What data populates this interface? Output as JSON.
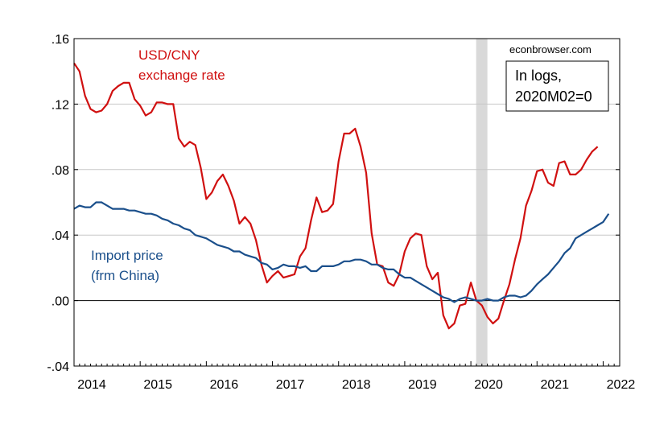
{
  "chart_data": {
    "type": "line",
    "title": "",
    "xlabel": "",
    "ylabel": "",
    "xlim": [
      2014.0,
      2022.25
    ],
    "ylim": [
      -0.04,
      0.16
    ],
    "x_ticks": [
      2014,
      2015,
      2016,
      2017,
      2018,
      2019,
      2020,
      2021,
      2022
    ],
    "x_tick_labels": [
      "2014",
      "2015",
      "2016",
      "2017",
      "2018",
      "2019",
      "2020",
      "2021",
      "2022"
    ],
    "y_ticks": [
      -0.04,
      0.0,
      0.04,
      0.08,
      0.12,
      0.16
    ],
    "y_tick_labels": [
      "-.04",
      ".00",
      ".04",
      ".08",
      ".12",
      ".16"
    ],
    "grid": true,
    "zero_line": true,
    "recession_shading": {
      "start": "2020M02",
      "end": "2020M04",
      "x": [
        2020.08,
        2020.25
      ],
      "color": "#d9d9d9"
    },
    "annotations": {
      "credit": "econbrowser.com",
      "note_line1": "In logs,",
      "note_line2": "2020M02=0"
    },
    "series": [
      {
        "name": "USD/CNY exchange rate",
        "label_line1": "USD/CNY",
        "label_line2": "exchange rate",
        "color": "#d01010",
        "start": "2014M01",
        "values": [
          0.145,
          0.14,
          0.125,
          0.117,
          0.115,
          0.116,
          0.12,
          0.128,
          0.131,
          0.133,
          0.133,
          0.123,
          0.119,
          0.113,
          0.115,
          0.121,
          0.121,
          0.12,
          0.12,
          0.099,
          0.094,
          0.097,
          0.095,
          0.081,
          0.062,
          0.066,
          0.073,
          0.077,
          0.07,
          0.061,
          0.047,
          0.051,
          0.047,
          0.037,
          0.022,
          0.011,
          0.015,
          0.018,
          0.014,
          0.015,
          0.016,
          0.027,
          0.032,
          0.049,
          0.063,
          0.054,
          0.055,
          0.059,
          0.085,
          0.102,
          0.102,
          0.105,
          0.094,
          0.078,
          0.041,
          0.022,
          0.021,
          0.011,
          0.009,
          0.016,
          0.03,
          0.038,
          0.041,
          0.04,
          0.021,
          0.013,
          0.017,
          -0.009,
          -0.017,
          -0.014,
          -0.003,
          -0.002,
          0.011,
          0.0,
          -0.003,
          -0.01,
          -0.014,
          -0.011,
          0.0,
          0.01,
          0.025,
          0.038,
          0.058,
          0.067,
          0.079,
          0.08,
          0.072,
          0.07,
          0.084,
          0.085,
          0.077,
          0.077,
          0.08,
          0.086,
          0.091,
          0.094
        ]
      },
      {
        "name": "Import price (frm China)",
        "label_line1": "Import price",
        "label_line2": "(frm China)",
        "color": "#1a4f8b",
        "start": "2014M01",
        "values": [
          0.056,
          0.058,
          0.057,
          0.057,
          0.06,
          0.06,
          0.058,
          0.056,
          0.056,
          0.056,
          0.055,
          0.055,
          0.054,
          0.053,
          0.053,
          0.052,
          0.05,
          0.049,
          0.047,
          0.046,
          0.044,
          0.043,
          0.04,
          0.039,
          0.038,
          0.036,
          0.034,
          0.033,
          0.032,
          0.03,
          0.03,
          0.028,
          0.027,
          0.026,
          0.023,
          0.022,
          0.019,
          0.02,
          0.022,
          0.021,
          0.021,
          0.02,
          0.021,
          0.018,
          0.018,
          0.021,
          0.021,
          0.021,
          0.022,
          0.024,
          0.024,
          0.025,
          0.025,
          0.024,
          0.022,
          0.022,
          0.02,
          0.019,
          0.019,
          0.016,
          0.014,
          0.014,
          0.012,
          0.01,
          0.008,
          0.006,
          0.004,
          0.002,
          0.001,
          -0.001,
          0.001,
          0.002,
          0.001,
          0.0,
          0.0,
          0.001,
          0.0,
          0.0,
          0.002,
          0.003,
          0.003,
          0.002,
          0.003,
          0.006,
          0.01,
          0.013,
          0.016,
          0.02,
          0.024,
          0.029,
          0.032,
          0.038,
          0.04,
          0.042,
          0.044,
          0.046,
          0.048,
          0.053
        ]
      }
    ]
  }
}
